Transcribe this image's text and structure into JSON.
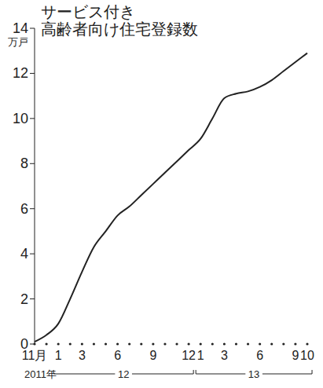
{
  "chart_data": {
    "type": "line",
    "title": "サービス付き\n高齢者向け住宅登録数",
    "y_label": "万戸",
    "categories": [
      "11月",
      null,
      "1",
      null,
      "3",
      null,
      null,
      "6",
      null,
      null,
      "9",
      null,
      null,
      "12",
      "1",
      null,
      "3",
      null,
      null,
      "6",
      null,
      null,
      "9",
      "10"
    ],
    "values": [
      0.1,
      0.4,
      0.9,
      2.0,
      3.2,
      4.3,
      5.0,
      5.7,
      6.1,
      6.6,
      7.1,
      7.6,
      8.1,
      8.6,
      9.1,
      10.0,
      10.9,
      11.1,
      11.2,
      11.4,
      11.7,
      12.1,
      12.5,
      12.9
    ],
    "x_groups": [
      {
        "label": "2011年",
        "start": 0,
        "end": 1
      },
      {
        "label": "12",
        "start": 2,
        "end": 13
      },
      {
        "label": "13",
        "start": 14,
        "end": 23
      }
    ],
    "color": "#222222",
    "ylim": [
      0,
      14
    ],
    "yticks": [
      0,
      2,
      4,
      6,
      8,
      10,
      12,
      14
    ],
    "grid": false
  }
}
